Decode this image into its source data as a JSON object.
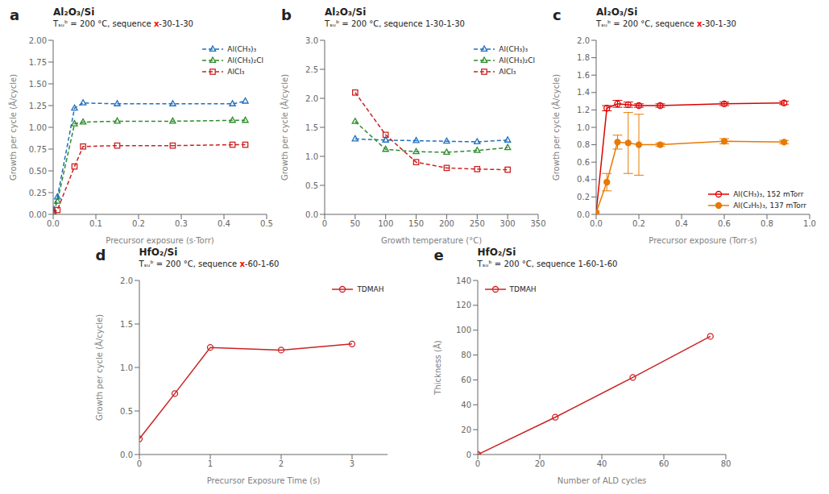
{
  "chart_data": [
    {
      "type": "line",
      "title": "a",
      "annotations": [
        "Al₂O₃/Si",
        [
          {
            "text": "Tₛᵤᵇ = 200 °C, sequence "
          },
          {
            "text": "x",
            "color": "#ff0000"
          },
          {
            "text": "-30-1-30"
          }
        ]
      ],
      "x_label": "Precursor exposure (s·Torr)",
      "y_label": "Growth per cycle (Å/cycle)",
      "xlim": [
        0,
        0.5
      ],
      "ylim": [
        0,
        2.0
      ],
      "xticks": [
        {
          "value": 0,
          "label": "0.0"
        },
        0.1,
        0.2,
        0.3,
        0.4,
        0.5
      ],
      "yticks": [
        {
          "value": 0,
          "label": "0.00"
        },
        0.25,
        {
          "value": 0.5,
          "label": "0.50"
        },
        0.75,
        {
          "value": 1.0,
          "label": "1.00"
        },
        1.25,
        {
          "value": 1.5,
          "label": "1.50"
        },
        1.75,
        {
          "value": 2.0,
          "label": "2.00"
        }
      ],
      "grid": false,
      "legend": "top-right",
      "x": [
        0,
        0.01,
        0.05,
        0.07,
        0.15,
        0.28,
        0.42,
        0.45
      ],
      "series": [
        {
          "name": "Al(CH₃)₃",
          "color": "#1f6fbf",
          "values": [
            0.05,
            0.2,
            1.22,
            1.28,
            1.27,
            1.27,
            1.27,
            1.3
          ],
          "marker": "triangle",
          "line_style": "dashed"
        },
        {
          "name": "Al(CH₃)₂Cl",
          "color": "#2e8b2e",
          "values": [
            0.03,
            0.15,
            1.04,
            1.06,
            1.07,
            1.07,
            1.08,
            1.08
          ],
          "marker": "triangle",
          "line_style": "dashed"
        },
        {
          "name": "AlCl₃",
          "color": "#cc2222",
          "values": [
            0.02,
            0.05,
            0.55,
            0.78,
            0.79,
            0.79,
            0.8,
            0.8
          ],
          "marker": "square",
          "line_style": "dashed"
        }
      ]
    },
    {
      "type": "line",
      "title": "b",
      "annotations": [
        "Al₂O₃/Si",
        "Tₛᵤᵇ = 200 °C, sequence 1-30-1-30"
      ],
      "x_label": "Growth temperature (°C)",
      "y_label": "Growth per cycle (Å/cycle)",
      "xlim": [
        0,
        350
      ],
      "ylim": [
        0,
        3.0
      ],
      "xticks": [
        0,
        50,
        100,
        150,
        200,
        250,
        300,
        350
      ],
      "yticks": [
        {
          "value": 0,
          "label": "0.0"
        },
        0.5,
        {
          "value": 1.0,
          "label": "1.0"
        },
        1.5,
        {
          "value": 2.0,
          "label": "2.0"
        },
        2.5,
        {
          "value": 3.0,
          "label": "3.0"
        }
      ],
      "grid": false,
      "legend": "top-right",
      "x": [
        50,
        100,
        150,
        200,
        250,
        300
      ],
      "series": [
        {
          "name": "Al(CH₃)₃",
          "color": "#1f6fbf",
          "values": [
            1.3,
            1.28,
            1.27,
            1.26,
            1.25,
            1.28
          ],
          "marker": "triangle",
          "line_style": "dashed"
        },
        {
          "name": "Al(CH₃)₂Cl",
          "color": "#2e8b2e",
          "values": [
            1.6,
            1.12,
            1.08,
            1.07,
            1.1,
            1.15
          ],
          "marker": "triangle",
          "line_style": "dashed"
        },
        {
          "name": "AlCl₃",
          "color": "#cc2222",
          "values": [
            2.1,
            1.37,
            0.9,
            0.8,
            0.78,
            0.77
          ],
          "marker": "square",
          "line_style": "dashed"
        }
      ]
    },
    {
      "type": "line",
      "title": "c",
      "annotations": [
        "Al₂O₃/Si",
        [
          {
            "text": "Tₛᵤᵇ = 200 °C, sequence "
          },
          {
            "text": "x",
            "color": "#ff0000"
          },
          {
            "text": "-30-1-30"
          }
        ]
      ],
      "x_label": "Precursor exposure (Torr·s)",
      "y_label": "Growth per cycle (Å/cycle)",
      "xlim": [
        0,
        1.0
      ],
      "ylim": [
        0,
        2.0
      ],
      "xticks": [
        {
          "value": 0,
          "label": "0.0"
        },
        0.2,
        0.4,
        0.6,
        0.8,
        {
          "value": 1.0,
          "label": "1.0"
        }
      ],
      "yticks": [
        {
          "value": 0,
          "label": "0.0"
        },
        0.2,
        0.4,
        0.6,
        0.8,
        {
          "value": 1.0,
          "label": "1.0"
        },
        1.2,
        1.4,
        1.6,
        1.8,
        {
          "value": 2.0,
          "label": "2.0"
        }
      ],
      "grid": false,
      "legend": "bottom-right",
      "x": [
        0,
        0.05,
        0.1,
        0.15,
        0.2,
        0.3,
        0.6,
        0.88
      ],
      "series": [
        {
          "name": "Al(CH₃)₃, 152 mTorr",
          "color": "#dd0000",
          "values": [
            0.02,
            1.22,
            1.27,
            1.26,
            1.25,
            1.25,
            1.27,
            1.28
          ],
          "errors": [
            0,
            0.03,
            0.04,
            0.03,
            0.02,
            0.02,
            0.02,
            0.02
          ],
          "marker": "circle",
          "line_style": "solid"
        },
        {
          "name": "Al(C₂H₅)₃, 137 mTorr",
          "color": "#e87a00",
          "values": [
            0.02,
            0.37,
            0.83,
            0.82,
            0.8,
            0.8,
            0.84,
            0.83
          ],
          "errors": [
            0,
            0.1,
            0.08,
            0.35,
            0.35,
            0.02,
            0.03,
            0.02
          ],
          "marker": "disc",
          "line_style": "solid"
        }
      ]
    },
    {
      "type": "line",
      "title": "d",
      "annotations": [
        "HfO₂/Si",
        [
          {
            "text": "Tₛᵤᵇ = 200 °C, sequence "
          },
          {
            "text": "x",
            "color": "#ff0000"
          },
          {
            "text": "-60-1-60"
          }
        ]
      ],
      "x_label": "Precursor Exposure Time (s)",
      "y_label": "Growth per cycle (Å/cycle)",
      "xlim": [
        0,
        3.5
      ],
      "ylim": [
        0,
        2.0
      ],
      "xticks": [
        0,
        1,
        2,
        3
      ],
      "yticks": [
        {
          "value": 0,
          "label": "0.0"
        },
        0.5,
        {
          "value": 1.0,
          "label": "1.0"
        },
        1.5,
        {
          "value": 2.0,
          "label": "2.0"
        }
      ],
      "grid": false,
      "legend": "top-right",
      "x": [
        0,
        0.5,
        1.0,
        2.0,
        3.0
      ],
      "series": [
        {
          "name": "TDMAH",
          "color": "#cc2222",
          "values": [
            0.18,
            0.7,
            1.23,
            1.2,
            1.27
          ],
          "marker": "circle",
          "line_style": "solid"
        }
      ]
    },
    {
      "type": "line",
      "title": "e",
      "annotations": [
        "HfO₂/Si",
        "Tₛᵤᵇ = 200 °C, sequence 1-60-1-60"
      ],
      "x_label": "Number of ALD cycles",
      "y_label": "Thickness (Å)",
      "xlim": [
        0,
        80
      ],
      "ylim": [
        0,
        140
      ],
      "xticks": [
        0,
        20,
        40,
        60,
        80
      ],
      "yticks": [
        0,
        20,
        40,
        60,
        80,
        100,
        120,
        140
      ],
      "grid": false,
      "legend": "top-left",
      "x": [
        0,
        25,
        50,
        75
      ],
      "series": [
        {
          "name": "TDMAH",
          "color": "#cc2222",
          "values": [
            0,
            30,
            62,
            95
          ],
          "marker": "circle",
          "line_style": "solid"
        }
      ]
    }
  ]
}
